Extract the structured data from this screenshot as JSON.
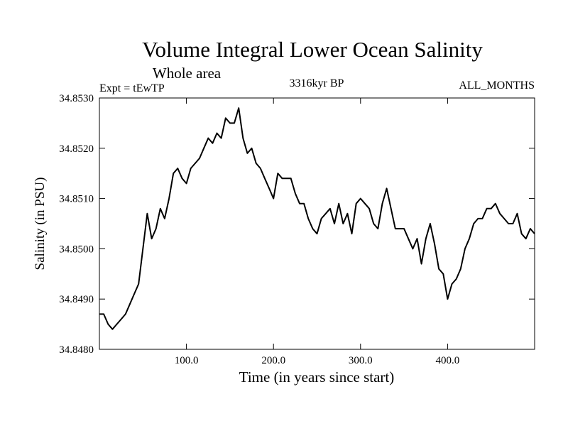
{
  "chart_data": {
    "type": "line",
    "title": "Volume Integral Lower Ocean Salinity",
    "subtitle": "Whole area",
    "annotations": {
      "left": "Expt = tEwTP",
      "center": "3316kyr BP",
      "right": "ALL_MONTHS"
    },
    "xlabel": "Time (in years since start)",
    "ylabel": "Salinity (in PSU)",
    "xlim": [
      0,
      500
    ],
    "ylim": [
      34.848,
      34.853
    ],
    "x_ticks": [
      {
        "value": 100,
        "label": "100.0"
      },
      {
        "value": 200,
        "label": "200.0"
      },
      {
        "value": 300,
        "label": "300.0"
      },
      {
        "value": 400,
        "label": "400.0"
      }
    ],
    "y_ticks": [
      {
        "value": 34.848,
        "label": "34.8480"
      },
      {
        "value": 34.849,
        "label": "34.8490"
      },
      {
        "value": 34.85,
        "label": "34.8500"
      },
      {
        "value": 34.851,
        "label": "34.8510"
      },
      {
        "value": 34.852,
        "label": "34.8520"
      },
      {
        "value": 34.853,
        "label": "34.8530"
      }
    ],
    "grid": false,
    "series": [
      {
        "name": "salinity",
        "color": "#000000",
        "x": [
          0,
          5,
          10,
          15,
          20,
          25,
          30,
          35,
          40,
          45,
          50,
          55,
          60,
          65,
          70,
          75,
          80,
          85,
          90,
          95,
          100,
          105,
          110,
          115,
          120,
          125,
          130,
          135,
          140,
          145,
          150,
          155,
          160,
          165,
          170,
          175,
          180,
          185,
          190,
          195,
          200,
          205,
          210,
          215,
          220,
          225,
          230,
          235,
          240,
          245,
          250,
          255,
          260,
          265,
          270,
          275,
          280,
          285,
          290,
          295,
          300,
          305,
          310,
          315,
          320,
          325,
          330,
          335,
          340,
          345,
          350,
          355,
          360,
          365,
          370,
          375,
          380,
          385,
          390,
          395,
          400,
          405,
          410,
          415,
          420,
          425,
          430,
          435,
          440,
          445,
          450,
          455,
          460,
          465,
          470,
          475,
          480,
          485,
          490,
          495,
          500
        ],
        "y": [
          34.8487,
          34.8487,
          34.8485,
          34.8484,
          34.8485,
          34.8486,
          34.8487,
          34.8489,
          34.8491,
          34.8493,
          34.85,
          34.8507,
          34.8502,
          34.8504,
          34.8508,
          34.8506,
          34.851,
          34.8515,
          34.8516,
          34.8514,
          34.8513,
          34.8516,
          34.8517,
          34.8518,
          34.852,
          34.8522,
          34.8521,
          34.8523,
          34.8522,
          34.8526,
          34.8525,
          34.8525,
          34.8528,
          34.8522,
          34.8519,
          34.852,
          34.8517,
          34.8516,
          34.8514,
          34.8512,
          34.851,
          34.8515,
          34.8514,
          34.8514,
          34.8514,
          34.8511,
          34.8509,
          34.8509,
          34.8506,
          34.8504,
          34.8503,
          34.8506,
          34.8507,
          34.8508,
          34.8505,
          34.8509,
          34.8505,
          34.8507,
          34.8503,
          34.8509,
          34.851,
          34.8509,
          34.8508,
          34.8505,
          34.8504,
          34.8509,
          34.8512,
          34.8508,
          34.8504,
          34.8504,
          34.8504,
          34.8502,
          34.85,
          34.8502,
          34.8497,
          34.8502,
          34.8505,
          34.8501,
          34.8496,
          34.8495,
          34.849,
          34.8493,
          34.8494,
          34.8496,
          34.85,
          34.8502,
          34.8505,
          34.8506,
          34.8506,
          34.8508,
          34.8508,
          34.8509,
          34.8507,
          34.8506,
          34.8505,
          34.8505,
          34.8507,
          34.8503,
          34.8502,
          34.8504,
          34.8503
        ]
      }
    ]
  }
}
